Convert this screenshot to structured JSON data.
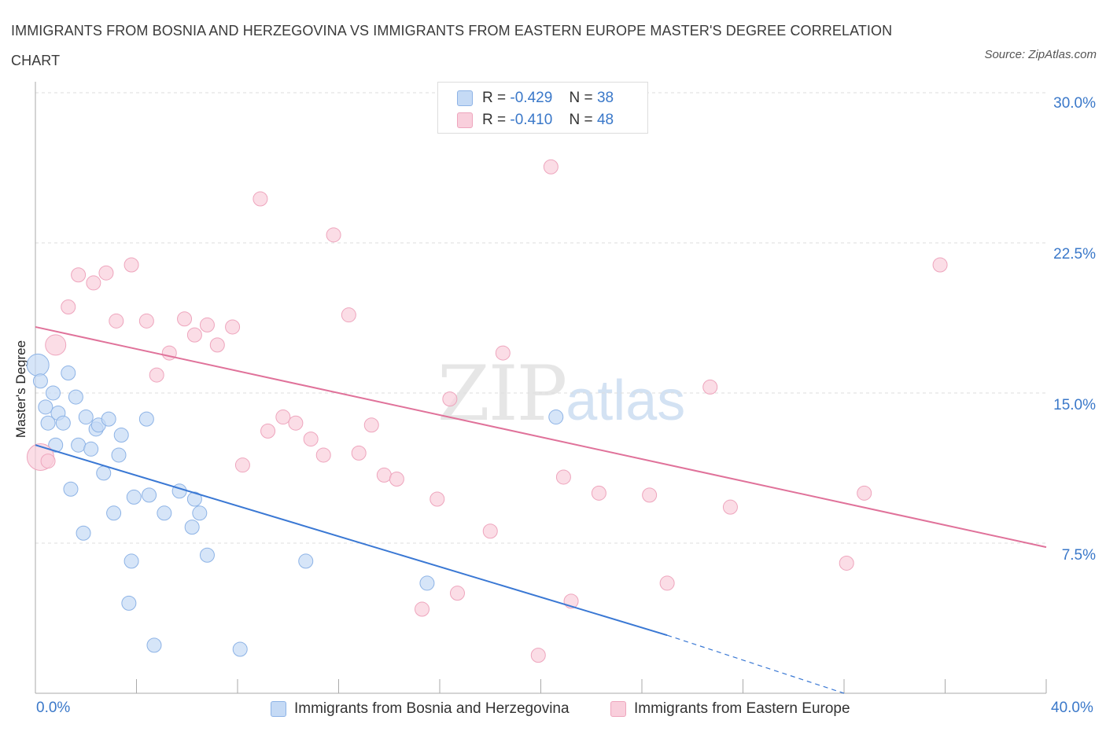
{
  "title": "IMMIGRANTS FROM BOSNIA AND HERZEGOVINA VS IMMIGRANTS FROM EASTERN EUROPE MASTER'S DEGREE CORRELATION CHART",
  "source": "Source: ZipAtlas.com",
  "watermark": {
    "zip": "ZIP",
    "atlas": "atlas"
  },
  "colors": {
    "blue_fill": "#c5daf5",
    "blue_stroke": "#8db3e6",
    "blue_line": "#3a78d4",
    "pink_fill": "#f9cfdc",
    "pink_stroke": "#eea5bd",
    "pink_line": "#e0729a",
    "axis_text": "#3a78c9",
    "grid": "#dddddd"
  },
  "legend": {
    "series1": {
      "r_label": "R =",
      "r_value": "-0.429",
      "n_label": "N =",
      "n_value": "38"
    },
    "series2": {
      "r_label": "R =",
      "r_value": "-0.410",
      "n_label": "N =",
      "n_value": "48"
    }
  },
  "chart_data": {
    "type": "scatter",
    "title": "IMMIGRANTS FROM BOSNIA AND HERZEGOVINA VS IMMIGRANTS FROM EASTERN EUROPE MASTER'S DEGREE CORRELATION CHART",
    "xlabel": "",
    "ylabel": "Master's Degree",
    "xlim": [
      0,
      40
    ],
    "ylim": [
      0,
      30
    ],
    "x_tick_labels": [
      "0.0%",
      "40.0%"
    ],
    "y_ticks": [
      7.5,
      15.0,
      22.5,
      30.0
    ],
    "y_tick_labels": [
      "7.5%",
      "15.0%",
      "22.5%",
      "30.0%"
    ],
    "grid": true,
    "series": [
      {
        "name": "Immigrants from Bosnia and Herzegovina",
        "color": "blue",
        "points": [
          [
            0.1,
            16.4
          ],
          [
            0.2,
            15.6
          ],
          [
            0.4,
            14.3
          ],
          [
            0.5,
            13.5
          ],
          [
            0.7,
            15.0
          ],
          [
            0.8,
            12.4
          ],
          [
            0.9,
            14.0
          ],
          [
            1.1,
            13.5
          ],
          [
            1.3,
            16.0
          ],
          [
            1.4,
            10.2
          ],
          [
            1.6,
            14.8
          ],
          [
            1.7,
            12.4
          ],
          [
            1.9,
            8.0
          ],
          [
            2.0,
            13.8
          ],
          [
            2.2,
            12.2
          ],
          [
            2.4,
            13.2
          ],
          [
            2.5,
            13.4
          ],
          [
            2.7,
            11.0
          ],
          [
            2.9,
            13.7
          ],
          [
            3.1,
            9.0
          ],
          [
            3.3,
            11.9
          ],
          [
            3.4,
            12.9
          ],
          [
            3.8,
            6.6
          ],
          [
            3.7,
            4.5
          ],
          [
            3.9,
            9.8
          ],
          [
            4.4,
            13.7
          ],
          [
            4.5,
            9.9
          ],
          [
            4.7,
            2.4
          ],
          [
            5.1,
            9.0
          ],
          [
            5.7,
            10.1
          ],
          [
            6.2,
            8.3
          ],
          [
            6.3,
            9.7
          ],
          [
            6.5,
            9.0
          ],
          [
            6.8,
            6.9
          ],
          [
            8.1,
            2.2
          ],
          [
            10.7,
            6.6
          ],
          [
            15.5,
            5.5
          ],
          [
            20.6,
            13.8
          ]
        ],
        "trend": {
          "x": [
            0.0,
            25.0
          ],
          "y": [
            12.4,
            2.9
          ],
          "extended_to": [
            32.0,
            0.0
          ]
        }
      },
      {
        "name": "Immigrants from Eastern Europe",
        "color": "pink",
        "points": [
          [
            0.2,
            11.8
          ],
          [
            0.8,
            17.4
          ],
          [
            1.3,
            19.3
          ],
          [
            1.7,
            20.9
          ],
          [
            2.3,
            20.5
          ],
          [
            2.8,
            21.0
          ],
          [
            3.2,
            18.6
          ],
          [
            3.8,
            21.4
          ],
          [
            4.4,
            18.6
          ],
          [
            4.8,
            15.9
          ],
          [
            5.3,
            17.0
          ],
          [
            5.9,
            18.7
          ],
          [
            6.3,
            17.9
          ],
          [
            6.8,
            18.4
          ],
          [
            7.2,
            17.4
          ],
          [
            7.8,
            18.3
          ],
          [
            8.2,
            11.4
          ],
          [
            8.9,
            24.7
          ],
          [
            9.2,
            13.1
          ],
          [
            9.8,
            13.8
          ],
          [
            10.3,
            13.5
          ],
          [
            10.9,
            12.7
          ],
          [
            11.4,
            11.9
          ],
          [
            11.8,
            22.9
          ],
          [
            12.4,
            18.9
          ],
          [
            12.8,
            12.0
          ],
          [
            13.3,
            13.4
          ],
          [
            13.8,
            10.9
          ],
          [
            14.3,
            10.7
          ],
          [
            15.3,
            4.2
          ],
          [
            15.9,
            9.7
          ],
          [
            16.4,
            14.7
          ],
          [
            16.7,
            5.0
          ],
          [
            18.0,
            8.1
          ],
          [
            18.5,
            17.0
          ],
          [
            19.9,
            1.9
          ],
          [
            20.4,
            26.3
          ],
          [
            20.9,
            10.8
          ],
          [
            21.2,
            4.6
          ],
          [
            22.3,
            10.0
          ],
          [
            24.3,
            9.9
          ],
          [
            25.0,
            5.5
          ],
          [
            26.7,
            15.3
          ],
          [
            27.5,
            9.3
          ],
          [
            32.1,
            6.5
          ],
          [
            32.8,
            10.0
          ],
          [
            35.8,
            21.4
          ],
          [
            0.5,
            11.6
          ]
        ],
        "trend": {
          "x": [
            0.0,
            40.0
          ],
          "y": [
            18.3,
            7.3
          ]
        }
      }
    ]
  }
}
